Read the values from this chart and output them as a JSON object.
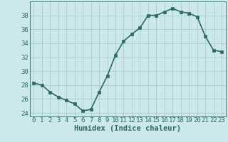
{
  "x": [
    0,
    1,
    2,
    3,
    4,
    5,
    6,
    7,
    8,
    9,
    10,
    11,
    12,
    13,
    14,
    15,
    16,
    17,
    18,
    19,
    20,
    21,
    22,
    23
  ],
  "y": [
    28.3,
    28.0,
    27.0,
    26.3,
    25.8,
    25.3,
    24.3,
    24.5,
    27.0,
    29.3,
    32.3,
    34.3,
    35.3,
    36.2,
    38.0,
    38.0,
    38.5,
    39.0,
    38.5,
    38.3,
    37.8,
    35.0,
    33.0,
    32.8
  ],
  "line_color": "#2d6b5e",
  "marker": "s",
  "markersize": 2.5,
  "bg_color": "#cce8ea",
  "grid_color": "#aed0d4",
  "xlabel": "Humidex (Indice chaleur)",
  "xlim": [
    -0.5,
    23.5
  ],
  "ylim": [
    23.5,
    40
  ],
  "yticks": [
    24,
    26,
    28,
    30,
    32,
    34,
    36,
    38
  ],
  "xticks": [
    0,
    1,
    2,
    3,
    4,
    5,
    6,
    7,
    8,
    9,
    10,
    11,
    12,
    13,
    14,
    15,
    16,
    17,
    18,
    19,
    20,
    21,
    22,
    23
  ],
  "xlabel_fontsize": 7.5,
  "tick_fontsize": 6.5,
  "line_width": 1.2
}
